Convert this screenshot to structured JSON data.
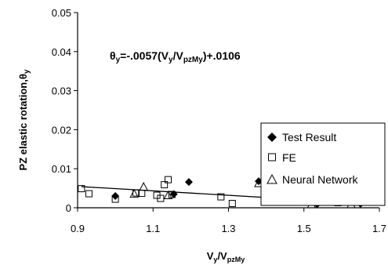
{
  "chart_data": {
    "type": "scatter",
    "title": "",
    "xlabel": "V_y/V_pzMy",
    "ylabel": "PZ elastic rotation,θ_y",
    "xlim": [
      0.9,
      1.7
    ],
    "ylim": [
      0,
      0.05
    ],
    "x_ticks": [
      "0.9",
      "1.1",
      "1.3",
      "1.5",
      "1.7"
    ],
    "y_ticks": [
      "0",
      "0.01",
      "0.02",
      "0.03",
      "0.04",
      "0.05"
    ],
    "grid": false,
    "legend_position": "right",
    "series": [
      {
        "name": "Test Result",
        "marker": "diamond-filled",
        "points": [
          {
            "x": 1.0,
            "y": 0.003
          },
          {
            "x": 1.155,
            "y": 0.0035
          },
          {
            "x": 1.195,
            "y": 0.0066
          },
          {
            "x": 1.38,
            "y": 0.0068
          },
          {
            "x": 1.535,
            "y": 0.0009
          },
          {
            "x": 1.65,
            "y": 0.001
          }
        ]
      },
      {
        "name": "FE",
        "marker": "square-open",
        "points": [
          {
            "x": 0.91,
            "y": 0.0049
          },
          {
            "x": 0.93,
            "y": 0.0036
          },
          {
            "x": 1.0,
            "y": 0.0022
          },
          {
            "x": 1.055,
            "y": 0.0038
          },
          {
            "x": 1.07,
            "y": 0.0037
          },
          {
            "x": 1.11,
            "y": 0.0032
          },
          {
            "x": 1.12,
            "y": 0.0024
          },
          {
            "x": 1.13,
            "y": 0.0059
          },
          {
            "x": 1.14,
            "y": 0.0072
          },
          {
            "x": 1.15,
            "y": 0.0034
          },
          {
            "x": 1.28,
            "y": 0.0028
          },
          {
            "x": 1.31,
            "y": 0.0011
          },
          {
            "x": 1.59,
            "y": 0.0013
          }
        ]
      },
      {
        "name": "Neural Network",
        "marker": "triangle-open",
        "points": [
          {
            "x": 1.05,
            "y": 0.0035
          },
          {
            "x": 1.075,
            "y": 0.0053
          },
          {
            "x": 1.14,
            "y": 0.0031
          },
          {
            "x": 1.38,
            "y": 0.0062
          },
          {
            "x": 1.52,
            "y": 0.0008
          },
          {
            "x": 1.625,
            "y": 0.0008
          }
        ]
      }
    ],
    "trendline": {
      "label": "θy=-.0057(Vy/VpzMy)+.0106",
      "slope": -0.0057,
      "intercept": 0.0106,
      "x_range": [
        0.91,
        1.6
      ]
    }
  }
}
